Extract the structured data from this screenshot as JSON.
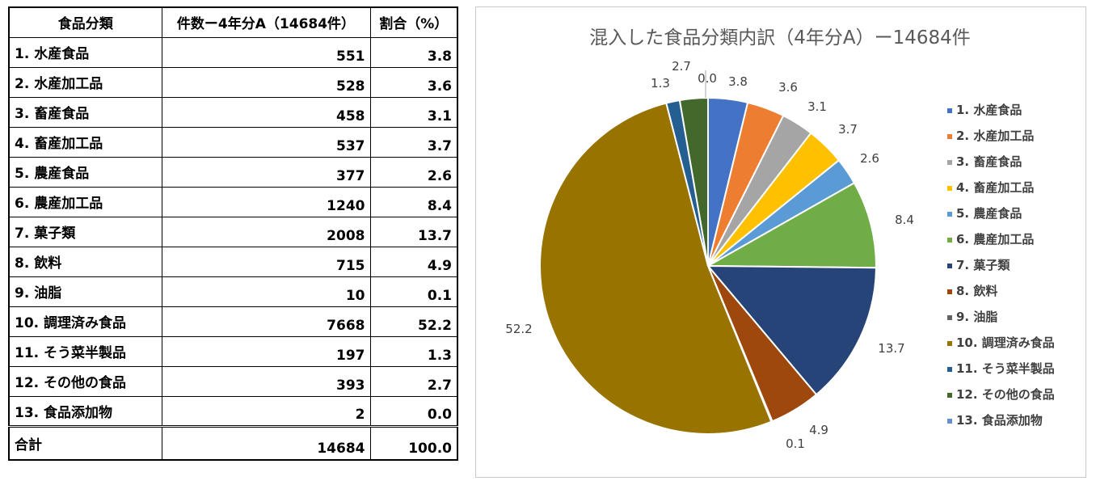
{
  "table": {
    "headers": [
      "食品分類",
      "件数ー4年分A（14684件）",
      "割合（%）"
    ],
    "rows": [
      {
        "name": "1. 水産食品",
        "count": "551",
        "pct": "3.8"
      },
      {
        "name": "2. 水産加工品",
        "count": "528",
        "pct": "3.6"
      },
      {
        "name": "3. 畜産食品",
        "count": "458",
        "pct": "3.1"
      },
      {
        "name": "4. 畜産加工品",
        "count": "537",
        "pct": "3.7"
      },
      {
        "name": "5. 農産食品",
        "count": "377",
        "pct": "2.6"
      },
      {
        "name": "6. 農産加工品",
        "count": "1240",
        "pct": "8.4"
      },
      {
        "name": "7. 菓子類",
        "count": "2008",
        "pct": "13.7"
      },
      {
        "name": "8. 飲料",
        "count": "715",
        "pct": "4.9"
      },
      {
        "name": "9. 油脂",
        "count": "10",
        "pct": "0.1"
      },
      {
        "name": "10. 調理済み食品",
        "count": "7668",
        "pct": "52.2"
      },
      {
        "name": "11. そう菜半製品",
        "count": "197",
        "pct": "1.3"
      },
      {
        "name": "12. その他の食品",
        "count": "393",
        "pct": "2.7"
      },
      {
        "name": "13. 食品添加物",
        "count": "2",
        "pct": "0.0"
      }
    ],
    "total": {
      "name": "合計",
      "count": "14684",
      "pct": "100.0"
    }
  },
  "chart_data": {
    "type": "pie",
    "title": "混入した食品分類内訳（4年分A）ー14684件",
    "legend_position": "right",
    "categories": [
      "1. 水産食品",
      "2. 水産加工品",
      "3. 畜産食品",
      "4. 畜産加工品",
      "5. 農産食品",
      "6. 農産加工品",
      "7. 菓子類",
      "8. 飲料",
      "9. 油脂",
      "10. 調理済み食品",
      "11. そう菜半製品",
      "12. その他の食品",
      "13. 食品添加物"
    ],
    "values": [
      3.8,
      3.6,
      3.1,
      3.7,
      2.6,
      8.4,
      13.7,
      4.9,
      0.1,
      52.2,
      1.3,
      2.7,
      0.0
    ],
    "labels": [
      "3.8",
      "3.6",
      "3.1",
      "3.7",
      "2.6",
      "8.4",
      "13.7",
      "4.9",
      "0.1",
      "52.2",
      "1.3",
      "2.7",
      "0.0"
    ],
    "colors": [
      "#4472C4",
      "#ED7D31",
      "#A5A5A5",
      "#FFC000",
      "#5B9BD5",
      "#70AD47",
      "#264478",
      "#9E480E",
      "#636363",
      "#997300",
      "#255E91",
      "#43682B",
      "#698ED0"
    ]
  }
}
